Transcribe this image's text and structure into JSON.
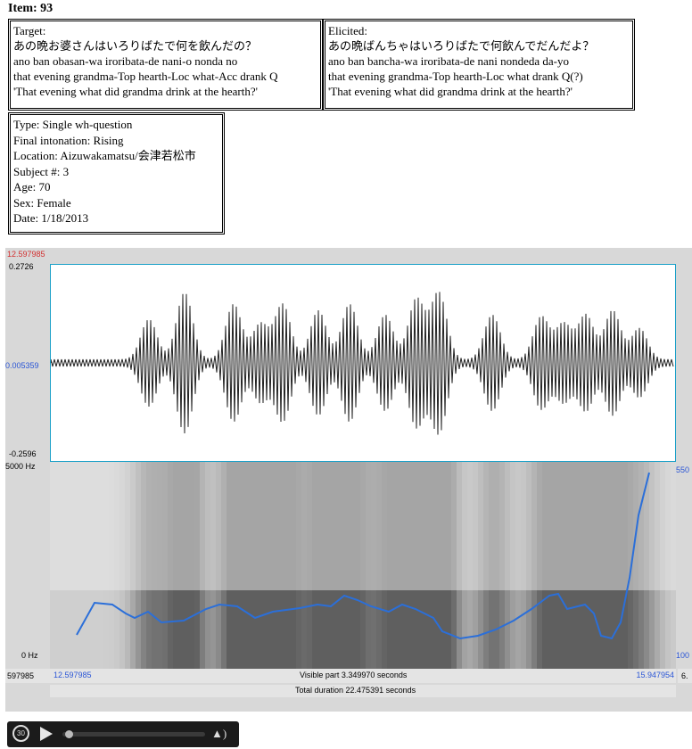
{
  "item_title": "Item: 93",
  "target": {
    "label": "Target:",
    "japanese": "あの晩お婆さんはいろりばたで何を飲んだの？",
    "romaji": "ano ban obasan-wa iroribata-de nani-o nonda no",
    "gloss": "that evening grandma-Top hearth-Loc what-Acc drank Q",
    "translation": "'That evening what did grandma drink at the hearth?'"
  },
  "elicited": {
    "label": "Elicited:",
    "japanese": "あの晩ばんちゃはいろりばたで何飲んでだんだよ？",
    "romaji": "ano ban bancha-wa iroribata-de nani nondeda da-yo",
    "gloss": "that evening grandma-Top hearth-Loc what drank Q(?)",
    "translation": "'That evening what did grandma drink at the hearth?'"
  },
  "metadata": {
    "type": "Type: Single wh-question",
    "intonation": "Final intonation: Rising",
    "location": "Location: Aizuwakamatsu/会津若松市",
    "subject": "Subject #: 3",
    "age": "Age: 70",
    "sex": "Sex: Female",
    "date": "Date: 1/18/2013"
  },
  "praat": {
    "start_time_top": "12.597985",
    "amp_max": "0.2726",
    "amp_mid": "0.005359",
    "amp_min": "-0.2596",
    "freq_max": "5000 Hz",
    "freq_min": "0 Hz",
    "pitch_max": "550",
    "pitch_min": "100",
    "left_time": "597985",
    "sel_start": "12.597985",
    "sel_end": "15.947954",
    "right_time": "6.",
    "visible_part": "Visible part 3.349970 seconds",
    "total_duration": "Total duration 22.475391 seconds",
    "colors": {
      "pitch": "#2b6fd9",
      "axis_red": "#d23030",
      "axis_blue": "#2b56d6"
    }
  },
  "player": {
    "replay_label": "30",
    "play_icon": "play-icon",
    "volume_icon": "volume-icon",
    "progress": 0.02
  }
}
